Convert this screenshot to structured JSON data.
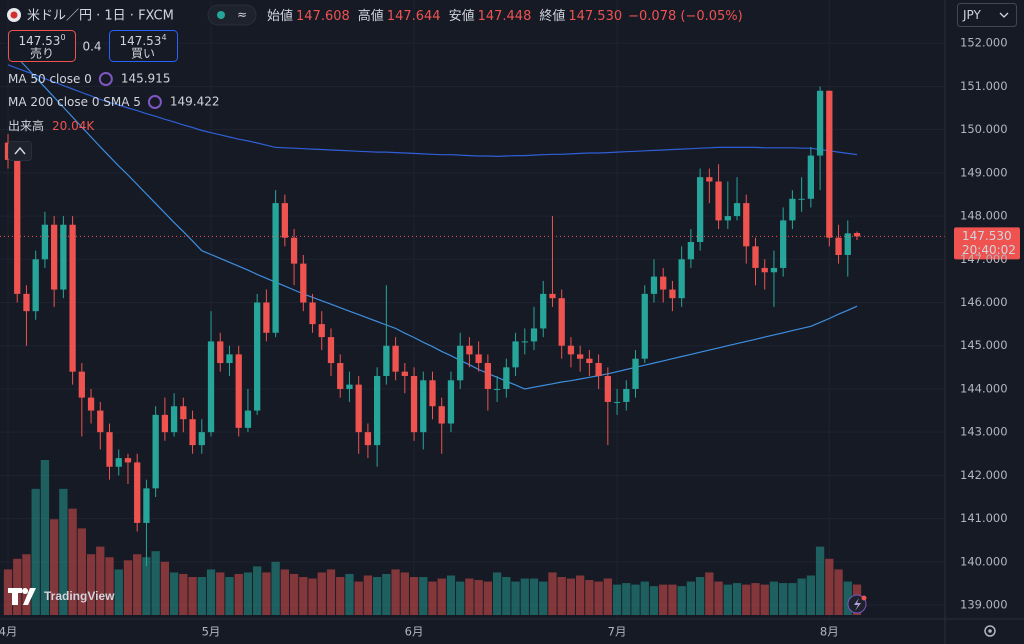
{
  "chart_data": {
    "type": "candlestick",
    "title": "米ドル／円 · 1日 · FXCM",
    "ohlc_header": [
      {
        "label": "始値",
        "value": "147.608"
      },
      {
        "label": "高値",
        "value": "147.644"
      },
      {
        "label": "安値",
        "value": "147.448"
      },
      {
        "label": "終値",
        "value": "147.530"
      }
    ],
    "change": "−0.078 (−0.05%)",
    "sell": {
      "price": "147.53",
      "pip": "0",
      "label": "売り"
    },
    "spread": "0.4",
    "buy": {
      "price": "147.53",
      "pip": "4",
      "label": "買い"
    },
    "currency": "JPY",
    "logo": "TradingView",
    "grid": true,
    "ylim": [
      138.7,
      153.0
    ],
    "yticks": [
      {
        "value": 139,
        "label": "139.000"
      },
      {
        "value": 140,
        "label": "140.000"
      },
      {
        "value": 141,
        "label": "141.000"
      },
      {
        "value": 142,
        "label": "142.000"
      },
      {
        "value": 143,
        "label": "143.000"
      },
      {
        "value": 144,
        "label": "144.000"
      },
      {
        "value": 145,
        "label": "145.000"
      },
      {
        "value": 146,
        "label": "146.000"
      },
      {
        "value": 147,
        "label": "147.000"
      },
      {
        "value": 148,
        "label": "148.000"
      },
      {
        "value": 149,
        "label": "149.000"
      },
      {
        "value": 150,
        "label": "150.000"
      },
      {
        "value": 151,
        "label": "151.000"
      },
      {
        "value": 152,
        "label": "152.000"
      }
    ],
    "xticks": [
      {
        "value": 0,
        "label": "4月"
      },
      {
        "value": 22,
        "label": "5月"
      },
      {
        "value": 44,
        "label": "6月"
      },
      {
        "value": 66,
        "label": "7月"
      },
      {
        "value": 89,
        "label": "8月"
      }
    ],
    "candles": {
      "up_color": "#26a69a",
      "down_color": "#ef5350",
      "open": [
        149.7,
        149.3,
        146.2,
        145.8,
        147.0,
        147.8,
        146.3,
        147.8,
        144.4,
        143.8,
        143.5,
        143.0,
        142.2,
        142.4,
        142.3,
        140.9,
        141.7,
        143.4,
        143.0,
        143.6,
        143.3,
        142.7,
        143.0,
        145.1,
        144.6,
        144.8,
        143.1,
        143.5,
        146.0,
        145.3,
        148.3,
        147.5,
        146.9,
        146.0,
        145.5,
        145.2,
        144.6,
        144.0,
        144.1,
        143.0,
        142.7,
        144.3,
        145.0,
        144.4,
        144.3,
        143.0,
        144.2,
        143.6,
        143.2,
        144.2,
        145.0,
        144.8,
        144.6,
        144.0,
        144.0,
        144.5,
        145.1,
        145.1,
        145.4,
        146.2,
        146.1,
        145.0,
        144.8,
        144.7,
        144.6,
        144.3,
        143.7,
        143.7,
        144.0,
        144.7,
        146.2,
        146.6,
        146.3,
        146.1,
        147.0,
        147.4,
        148.9,
        148.8,
        147.9,
        148.0,
        148.3,
        147.3,
        146.8,
        146.7,
        146.8,
        147.9,
        148.4,
        148.4,
        149.4,
        150.9,
        147.5,
        147.1,
        147.608
      ],
      "high": [
        149.9,
        149.5,
        146.4,
        147.2,
        148.1,
        148.0,
        148.0,
        148.0,
        144.6,
        144.0,
        143.7,
        143.2,
        142.6,
        142.5,
        142.5,
        141.9,
        143.6,
        143.8,
        143.9,
        143.8,
        143.5,
        143.3,
        145.8,
        145.3,
        145.0,
        145.0,
        144.0,
        146.2,
        146.3,
        148.6,
        148.5,
        147.7,
        147.1,
        146.2,
        145.8,
        145.4,
        144.8,
        144.4,
        144.3,
        143.2,
        144.5,
        146.4,
        145.2,
        144.6,
        144.5,
        144.4,
        144.4,
        143.8,
        144.4,
        145.3,
        145.2,
        145.1,
        144.8,
        144.3,
        144.7,
        145.3,
        145.4,
        145.9,
        146.5,
        148.0,
        146.3,
        145.2,
        145.0,
        144.9,
        144.8,
        144.5,
        144.0,
        144.2,
        144.9,
        146.4,
        147.0,
        146.8,
        146.5,
        147.3,
        147.7,
        149.1,
        149.1,
        149.2,
        148.8,
        148.9,
        148.5,
        147.5,
        147.0,
        147.2,
        148.2,
        148.6,
        148.9,
        149.6,
        151.0,
        150.9,
        147.8,
        147.9,
        147.644
      ],
      "low": [
        149.1,
        146.0,
        145.0,
        145.6,
        146.8,
        145.9,
        146.1,
        144.1,
        142.9,
        143.2,
        142.6,
        141.9,
        142.0,
        141.8,
        140.7,
        139.9,
        141.5,
        142.8,
        142.9,
        143.0,
        142.5,
        142.5,
        142.9,
        144.4,
        144.3,
        142.9,
        143.0,
        143.4,
        145.1,
        145.2,
        147.3,
        146.4,
        145.8,
        145.3,
        144.9,
        144.3,
        143.8,
        143.7,
        142.5,
        142.4,
        142.2,
        144.1,
        144.2,
        143.9,
        142.8,
        142.6,
        143.3,
        142.5,
        143.0,
        144.0,
        144.5,
        144.4,
        143.5,
        143.7,
        143.8,
        144.3,
        144.8,
        144.9,
        145.2,
        145.9,
        144.7,
        144.5,
        144.4,
        144.3,
        144.0,
        142.7,
        143.4,
        143.5,
        143.8,
        144.6,
        146.0,
        146.0,
        145.8,
        145.9,
        146.8,
        147.2,
        148.3,
        147.7,
        147.7,
        147.9,
        146.9,
        146.4,
        146.3,
        145.9,
        146.6,
        147.7,
        148.1,
        148.2,
        148.6,
        147.3,
        146.9,
        146.6,
        147.448
      ],
      "close": [
        149.3,
        146.2,
        145.8,
        147.0,
        147.8,
        146.3,
        147.8,
        144.4,
        143.8,
        143.5,
        143.0,
        142.2,
        142.4,
        142.3,
        140.9,
        141.7,
        143.4,
        143.0,
        143.6,
        143.3,
        142.7,
        143.0,
        145.1,
        144.6,
        144.8,
        143.1,
        143.5,
        146.0,
        145.3,
        148.3,
        147.5,
        146.9,
        146.0,
        145.5,
        145.2,
        144.6,
        144.0,
        144.1,
        143.0,
        142.7,
        144.3,
        145.0,
        144.4,
        144.3,
        143.0,
        144.2,
        143.6,
        143.2,
        144.2,
        145.0,
        144.8,
        144.6,
        144.0,
        144.0,
        144.5,
        145.1,
        145.1,
        145.4,
        146.2,
        146.1,
        145.0,
        144.8,
        144.7,
        144.6,
        144.3,
        143.7,
        143.7,
        144.0,
        144.7,
        146.2,
        146.6,
        146.3,
        146.1,
        147.0,
        147.4,
        148.9,
        148.8,
        147.9,
        148.0,
        148.3,
        147.3,
        146.8,
        146.7,
        146.8,
        147.9,
        148.4,
        148.4,
        149.4,
        150.9,
        147.5,
        147.1,
        147.6,
        147.53
      ]
    },
    "series": [
      {
        "name": "MA 50 close 0",
        "color": "#3d8ee0",
        "value_label": "145.915",
        "values": [
          151.9,
          151.67,
          151.44,
          151.21,
          150.98,
          150.75,
          150.52,
          150.29,
          150.06,
          149.83,
          149.6,
          149.38,
          149.16,
          148.95,
          148.73,
          148.51,
          148.29,
          148.07,
          147.85,
          147.64,
          147.42,
          147.2,
          147.11,
          147.02,
          146.93,
          146.84,
          146.75,
          146.65,
          146.56,
          146.47,
          146.38,
          146.29,
          146.2,
          146.12,
          146.04,
          145.96,
          145.88,
          145.8,
          145.72,
          145.64,
          145.56,
          145.48,
          145.4,
          145.29,
          145.19,
          145.08,
          144.98,
          144.87,
          144.77,
          144.66,
          144.56,
          144.45,
          144.36,
          144.27,
          144.18,
          144.09,
          144.0,
          144.04,
          144.08,
          144.12,
          144.16,
          144.19,
          144.23,
          144.27,
          144.31,
          144.35,
          144.4,
          144.45,
          144.5,
          144.55,
          144.6,
          144.65,
          144.7,
          144.75,
          144.8,
          144.85,
          144.9,
          144.95,
          145.0,
          145.05,
          145.1,
          145.15,
          145.2,
          145.25,
          145.3,
          145.35,
          145.4,
          145.45,
          145.54,
          145.63,
          145.73,
          145.82,
          145.915
        ]
      },
      {
        "name": "MA 200 close 0 SMA 5",
        "color": "#2f5fd6",
        "value_label": "149.422",
        "values": [
          151.5,
          151.42,
          151.34,
          151.26,
          151.18,
          151.1,
          151.02,
          150.94,
          150.86,
          150.78,
          150.7,
          150.63,
          150.57,
          150.5,
          150.44,
          150.37,
          150.31,
          150.24,
          150.18,
          150.11,
          150.05,
          149.98,
          149.93,
          149.88,
          149.83,
          149.78,
          149.74,
          149.69,
          149.64,
          149.59,
          149.58,
          149.57,
          149.56,
          149.55,
          149.54,
          149.53,
          149.52,
          149.51,
          149.5,
          149.49,
          149.48,
          149.48,
          149.47,
          149.46,
          149.45,
          149.44,
          149.43,
          149.42,
          149.42,
          149.41,
          149.4,
          149.39,
          149.39,
          149.38,
          149.39,
          149.4,
          149.4,
          149.41,
          149.42,
          149.43,
          149.43,
          149.44,
          149.45,
          149.46,
          149.46,
          149.47,
          149.48,
          149.49,
          149.5,
          149.51,
          149.52,
          149.53,
          149.54,
          149.55,
          149.56,
          149.57,
          149.58,
          149.59,
          149.59,
          149.59,
          149.59,
          149.59,
          149.58,
          149.58,
          149.58,
          149.58,
          149.57,
          149.57,
          149.54,
          149.51,
          149.48,
          149.45,
          149.422
        ]
      }
    ],
    "volume": {
      "name": "出来高",
      "value_label": "20.04K",
      "values": [
        30,
        37,
        40,
        83,
        102,
        63,
        83,
        70,
        57,
        40,
        45,
        38,
        30,
        36,
        40,
        38,
        42,
        35,
        28,
        27,
        25,
        25,
        30,
        28,
        25,
        27,
        28,
        32,
        28,
        35,
        30,
        27,
        25,
        24,
        28,
        30,
        25,
        27,
        22,
        26,
        25,
        27,
        30,
        28,
        25,
        25,
        22,
        24,
        26,
        22,
        24,
        23,
        22,
        28,
        25,
        22,
        24,
        24,
        22,
        28,
        25,
        24,
        26,
        23,
        22,
        24,
        20,
        21,
        20,
        22,
        19,
        20,
        20,
        19,
        22,
        25,
        28,
        22,
        20,
        21,
        20,
        21,
        20,
        22,
        21,
        21,
        24,
        26,
        45,
        37,
        30,
        22,
        20.04
      ]
    },
    "last_price": {
      "label": "147.530",
      "time": "20:40:02"
    }
  }
}
